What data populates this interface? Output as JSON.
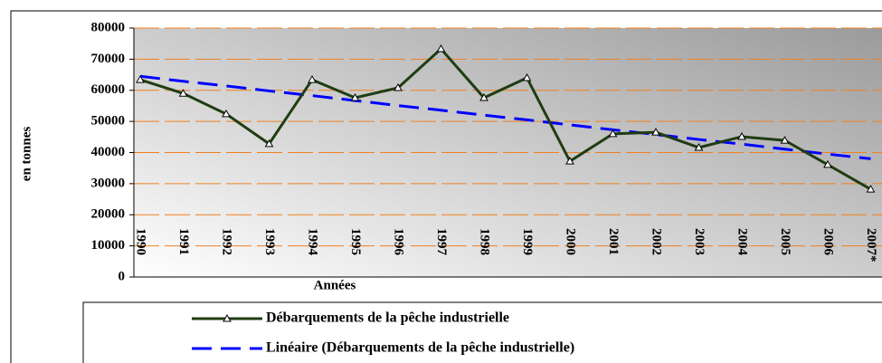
{
  "chart_data": {
    "type": "line",
    "y_label": "en tonnes",
    "x_label": "Années",
    "categories": [
      "1990",
      "1991",
      "1992",
      "1993",
      "1994",
      "1995",
      "1996",
      "1997",
      "1998",
      "1999",
      "2000",
      "2001",
      "2002",
      "2003",
      "2004",
      "2005",
      "2006",
      "2007*"
    ],
    "series": [
      {
        "name": "Débarquements de la pêche industrielle",
        "color": "#1f3d12",
        "style": "solid",
        "marker": "triangle",
        "values": [
          63400,
          59000,
          52400,
          42800,
          63400,
          57600,
          60800,
          73300,
          57600,
          64000,
          37200,
          46000,
          46500,
          41600,
          45100,
          43900,
          36100,
          28200
        ]
      },
      {
        "name": "Linéaire (Débarquements de la pêche industrielle)",
        "color": "#0000ff",
        "style": "dashed",
        "marker": "none",
        "values": [
          64500,
          62900,
          61400,
          59800,
          58300,
          56700,
          55100,
          53600,
          52000,
          50500,
          48900,
          47300,
          45800,
          44200,
          42700,
          41100,
          39500,
          38000
        ]
      }
    ],
    "ylim": [
      0,
      80000
    ],
    "yticks": [
      0,
      10000,
      20000,
      30000,
      40000,
      50000,
      60000,
      70000,
      80000
    ],
    "grid": true,
    "grid_color": "#f08020",
    "legend": "bottom"
  }
}
